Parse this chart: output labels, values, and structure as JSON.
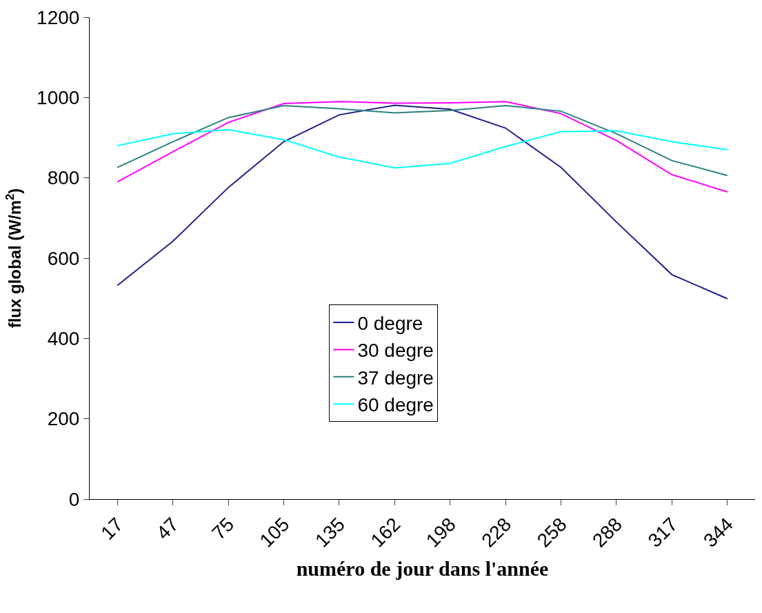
{
  "chart_data": {
    "type": "line",
    "xlabel": "numéro de jour dans l'année",
    "ylabel": "flux global (W/m$^{2}$)",
    "categories": [
      "17",
      "47",
      "75",
      "105",
      "135",
      "162",
      "198",
      "228",
      "258",
      "288",
      "317",
      "344"
    ],
    "series": [
      {
        "name": "0 degre",
        "color": "#1f1f8c",
        "values": [
          532,
          642,
          776,
          890,
          957,
          981,
          971,
          924,
          826,
          690,
          559,
          499
        ]
      },
      {
        "name": "30 degre",
        "color": "#ff00ff",
        "values": [
          790,
          865,
          938,
          985,
          990,
          986,
          987,
          990,
          960,
          893,
          808,
          765
        ]
      },
      {
        "name": "37 degre",
        "color": "#2a8080",
        "values": [
          826,
          890,
          950,
          980,
          972,
          962,
          968,
          980,
          966,
          910,
          843,
          806
        ]
      },
      {
        "name": "60 degre",
        "color": "#00ffff",
        "values": [
          880,
          910,
          920,
          895,
          852,
          825,
          836,
          878,
          915,
          917,
          890,
          870
        ]
      }
    ],
    "ylim": [
      0,
      1200
    ],
    "yticks": [
      0,
      200,
      400,
      600,
      800,
      1000,
      1200
    ],
    "legend": "bottom",
    "marker": "none",
    "line_style": "solid"
  }
}
